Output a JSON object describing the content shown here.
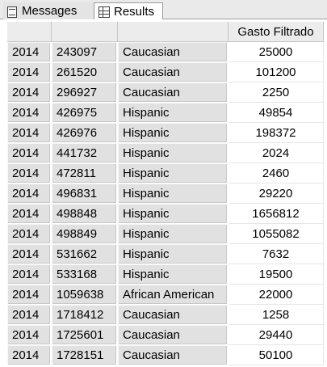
{
  "tabs": [
    {
      "label": "Messages",
      "icon": "messages-icon",
      "active": false
    },
    {
      "label": "Results",
      "icon": "grid-icon",
      "active": true
    }
  ],
  "grid": {
    "columns": [
      "",
      "",
      "",
      "Gasto Filtrado"
    ],
    "rows": [
      [
        "2014",
        "243097",
        "Caucasian",
        "25000"
      ],
      [
        "2014",
        "261520",
        "Caucasian",
        "101200"
      ],
      [
        "2014",
        "296927",
        "Caucasian",
        "2250"
      ],
      [
        "2014",
        "426975",
        "Hispanic",
        "49854"
      ],
      [
        "2014",
        "426976",
        "Hispanic",
        "198372"
      ],
      [
        "2014",
        "441732",
        "Hispanic",
        "2024"
      ],
      [
        "2014",
        "472811",
        "Hispanic",
        "2460"
      ],
      [
        "2014",
        "496831",
        "Hispanic",
        "29220"
      ],
      [
        "2014",
        "498848",
        "Hispanic",
        "1656812"
      ],
      [
        "2014",
        "498849",
        "Hispanic",
        "1055082"
      ],
      [
        "2014",
        "531662",
        "Hispanic",
        "7632"
      ],
      [
        "2014",
        "533168",
        "Hispanic",
        "19500"
      ],
      [
        "2014",
        "1059638",
        "African American",
        "22000"
      ],
      [
        "2014",
        "1718412",
        "Caucasian",
        "1258"
      ],
      [
        "2014",
        "1725601",
        "Caucasian",
        "29440"
      ],
      [
        "2014",
        "1728151",
        "Caucasian",
        "50100"
      ]
    ]
  }
}
